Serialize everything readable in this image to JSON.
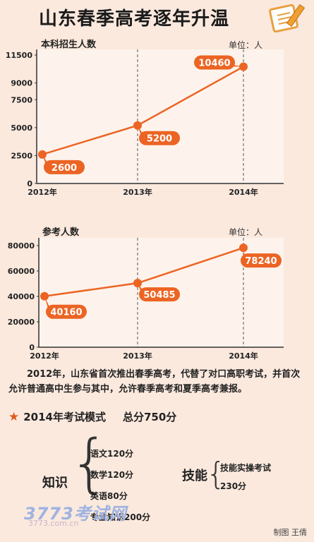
{
  "title": "山东春季高考逐年升温",
  "chart_data": [
    {
      "type": "line",
      "title": "本科招生人数",
      "unit": "单位：人",
      "categories": [
        "2012年",
        "2013年",
        "2014年"
      ],
      "values": [
        2600,
        5200,
        10460
      ],
      "yticks": [
        0,
        2500,
        5000,
        7500,
        9000,
        11500
      ],
      "ylim": [
        0,
        11500
      ],
      "grid": "vertical-dashed",
      "color": "#ec6423"
    },
    {
      "type": "line",
      "title": "参考人数",
      "unit": "单位：人",
      "categories": [
        "2012年",
        "2013年",
        "2014年"
      ],
      "values": [
        40160,
        50485,
        78240
      ],
      "yticks": [
        0,
        20000,
        40000,
        60000,
        80000
      ],
      "ylim": [
        0,
        80000
      ],
      "grid": "vertical-dashed",
      "color": "#ec6423"
    }
  ],
  "paragraph": "2012年，山东省首次推出春季高考，代替了对口高职考试，并首次允许普通高中生参与其中，允许春季高考和夏季高考兼报。",
  "mode": {
    "star": "★",
    "title": "2014年考试模式",
    "total": "总分750分"
  },
  "knowledge": {
    "label": "知识",
    "items": [
      "语文120分",
      "数学120分",
      "英语80分",
      "专业知识200分"
    ]
  },
  "skills": {
    "label": "技能",
    "items": [
      "技能实操考试",
      "230分"
    ]
  },
  "logo": "3773考试网",
  "logo_url": "3773.com.cn",
  "credit": "制图 王倩"
}
